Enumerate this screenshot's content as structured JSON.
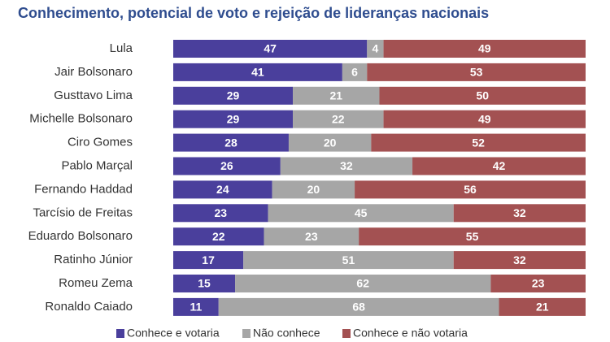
{
  "chart_data": {
    "type": "stacked-barh",
    "title": "Conhecimento, potencial de voto e rejeição de lideranças nacionais",
    "categories": [
      "Lula",
      "Jair Bolsonaro",
      "Gusttavo Lima",
      "Michelle Bolsonaro",
      "Ciro Gomes",
      "Pablo Marçal",
      "Fernando Haddad",
      "Tarcísio de Freitas",
      "Eduardo Bolsonaro",
      "Ratinho Júnior",
      "Romeu Zema",
      "Ronaldo Caiado"
    ],
    "series": [
      {
        "name": "Conhece e votaria",
        "color": "#4a3f9c",
        "values": [
          47,
          41,
          29,
          29,
          28,
          26,
          24,
          23,
          22,
          17,
          15,
          11
        ]
      },
      {
        "name": "Não conhece",
        "color": "#a6a6a6",
        "values": [
          4,
          6,
          21,
          22,
          20,
          32,
          20,
          45,
          23,
          51,
          62,
          68
        ]
      },
      {
        "name": "Conhece e não votaria",
        "color": "#a35152",
        "values": [
          49,
          53,
          50,
          49,
          52,
          42,
          56,
          32,
          55,
          32,
          23,
          21
        ]
      }
    ],
    "legend": "bottom"
  }
}
